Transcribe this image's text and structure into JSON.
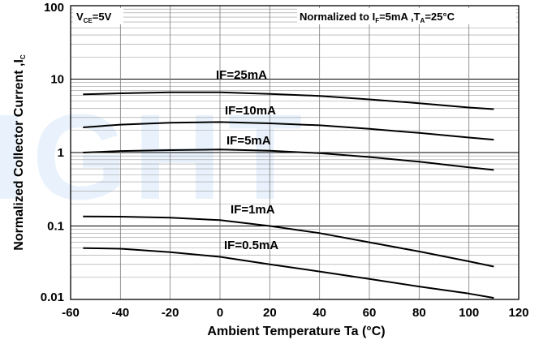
{
  "chart_data": {
    "type": "line",
    "xlabel": "Ambient Temperature Ta (°C)",
    "ylabel": "Normalized Collector Current ,I",
    "ylabel_sub": "C",
    "xlim": [
      -60,
      120
    ],
    "ylim": [
      0.01,
      100
    ],
    "yscale": "log",
    "x_ticks": [
      "-60",
      "-40",
      "-20",
      "0",
      "20",
      "40",
      "60",
      "80",
      "100",
      "120"
    ],
    "y_ticks": [
      "0.01",
      "0.1",
      "1",
      "10",
      "100"
    ],
    "grid": true,
    "watermark": "IGHT",
    "annotations": {
      "condition_left": {
        "main": "V",
        "sub": "CE",
        "rest": "=5V"
      },
      "condition_right": {
        "main": "Normalized to I",
        "sub1": "F",
        "mid": "=5mA ,T",
        "sub2": "A",
        "rest": "=25°C"
      }
    },
    "series": [
      {
        "name": "IF=25mA",
        "x": [
          -55,
          -40,
          -20,
          0,
          20,
          40,
          60,
          80,
          100,
          110
        ],
        "y": [
          6.2,
          6.4,
          6.6,
          6.6,
          6.3,
          5.9,
          5.3,
          4.7,
          4.1,
          3.9
        ]
      },
      {
        "name": "IF=10mA",
        "x": [
          -55,
          -40,
          -20,
          0,
          20,
          40,
          60,
          80,
          100,
          110
        ],
        "y": [
          2.2,
          2.4,
          2.55,
          2.6,
          2.5,
          2.35,
          2.1,
          1.85,
          1.6,
          1.5
        ]
      },
      {
        "name": "IF=5mA",
        "x": [
          -55,
          -40,
          -20,
          0,
          20,
          40,
          60,
          80,
          100,
          110
        ],
        "y": [
          1.0,
          1.05,
          1.08,
          1.1,
          1.06,
          0.98,
          0.87,
          0.75,
          0.63,
          0.58
        ]
      },
      {
        "name": "IF=1mA",
        "x": [
          -55,
          -40,
          -20,
          0,
          20,
          40,
          60,
          80,
          100,
          110
        ],
        "y": [
          0.135,
          0.134,
          0.13,
          0.12,
          0.1,
          0.08,
          0.06,
          0.045,
          0.033,
          0.028
        ]
      },
      {
        "name": "IF=0.5mA",
        "x": [
          -55,
          -40,
          -20,
          0,
          20,
          40,
          60,
          80,
          100,
          110
        ],
        "y": [
          0.05,
          0.049,
          0.044,
          0.038,
          0.03,
          0.024,
          0.019,
          0.015,
          0.012,
          0.0105
        ]
      }
    ]
  }
}
